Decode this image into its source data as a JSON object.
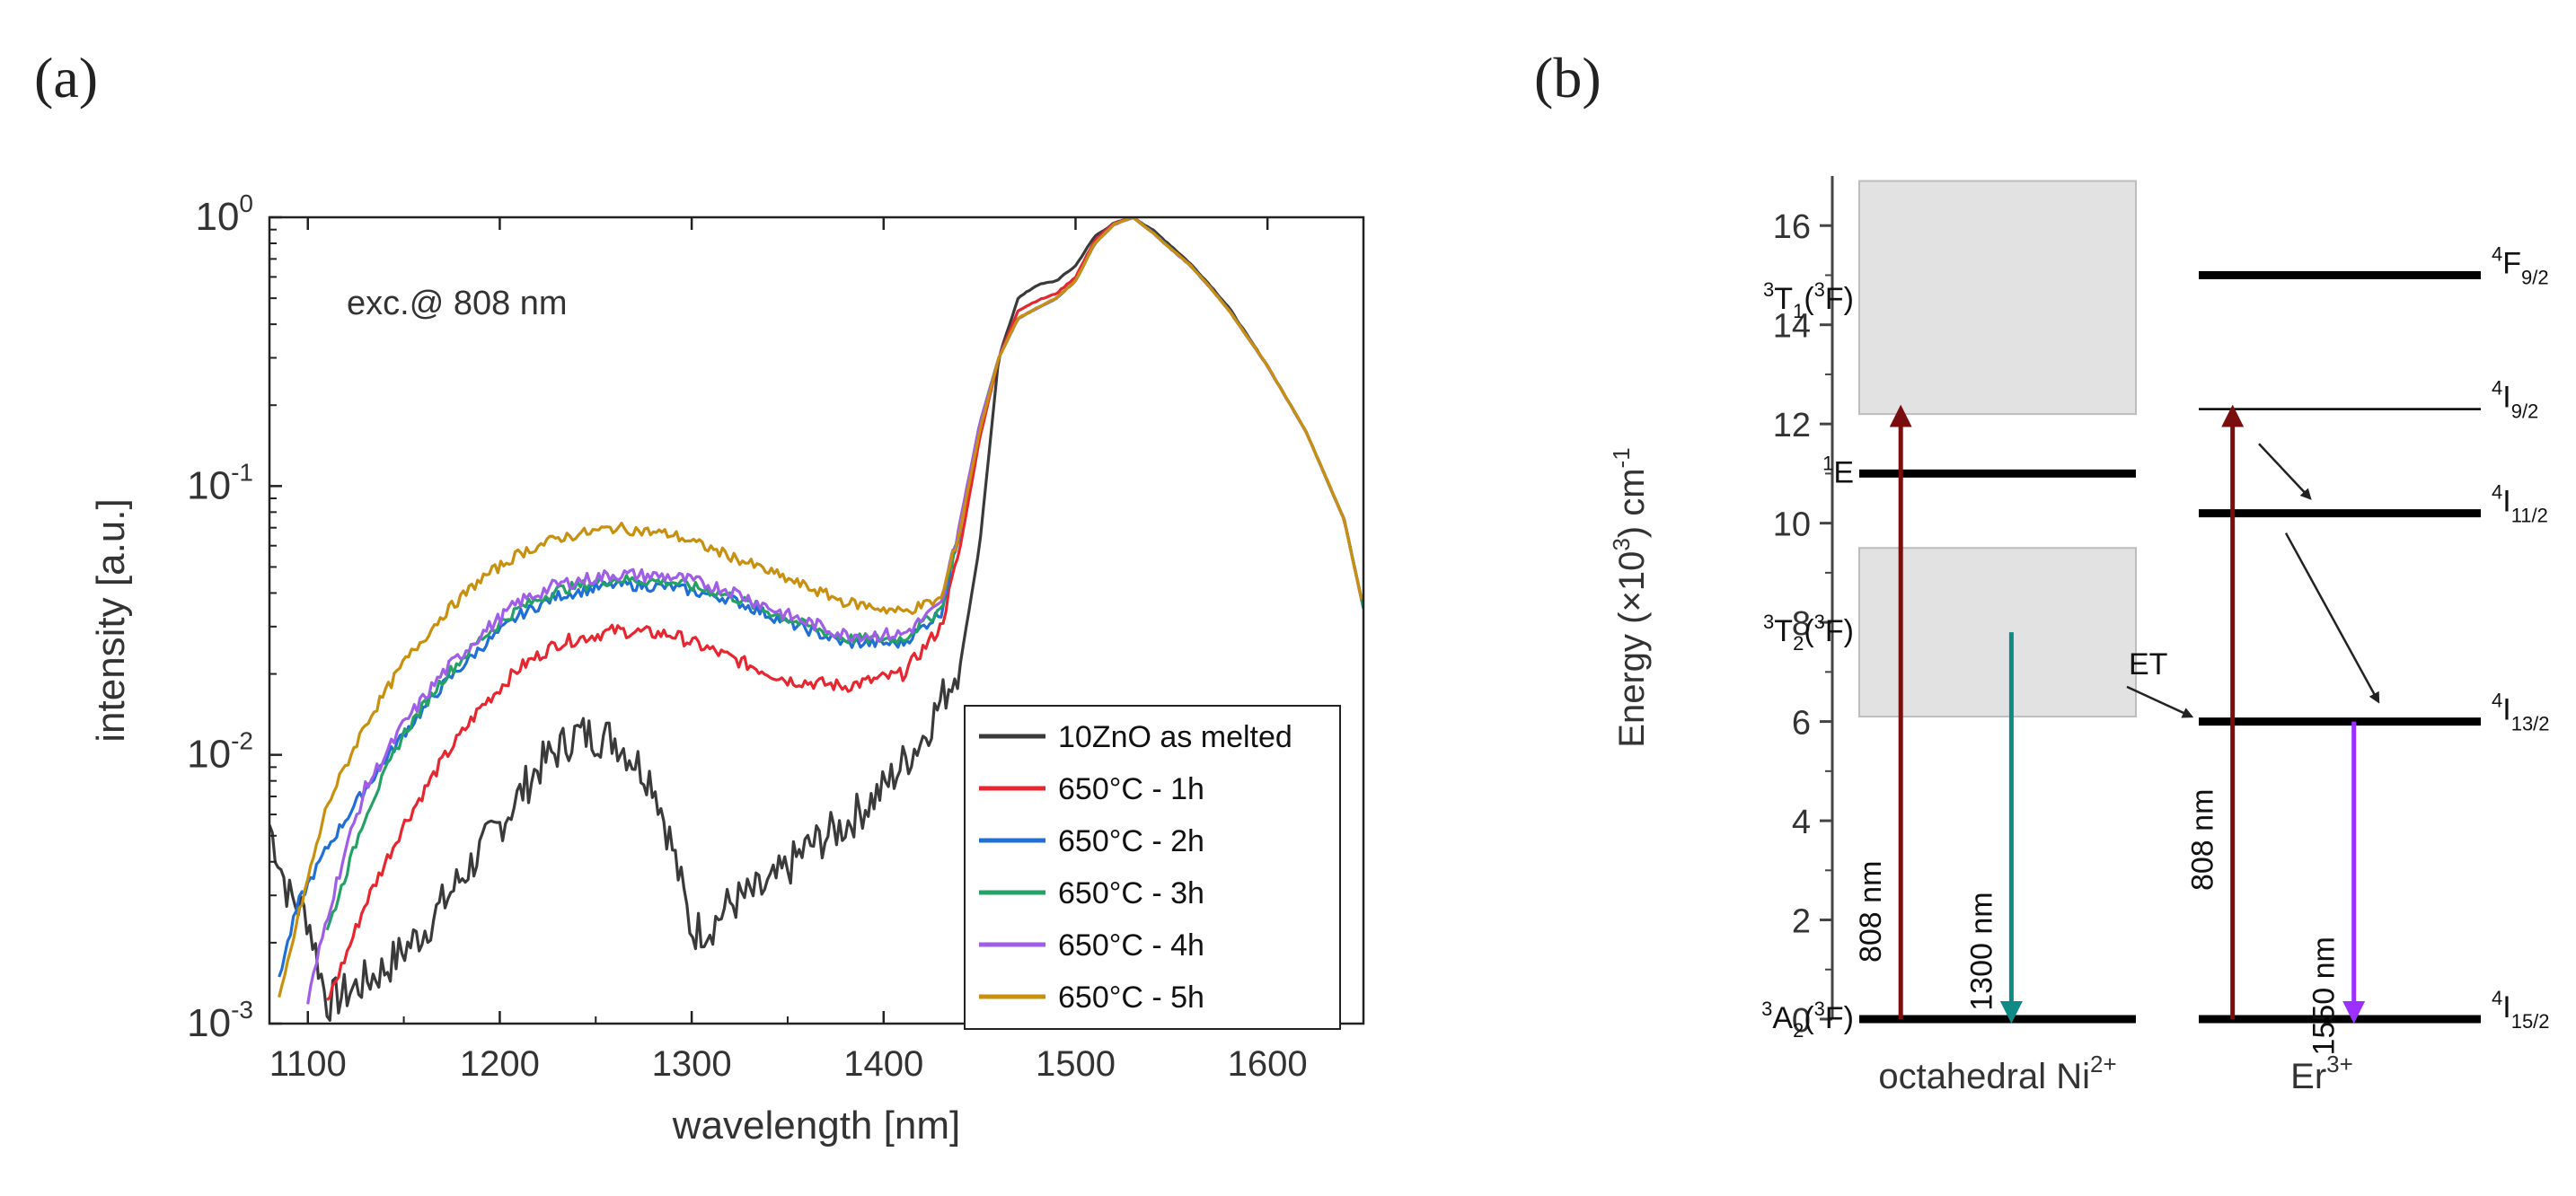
{
  "chart_data": [
    {
      "panel": "(a)",
      "type": "line",
      "annotation": "exc.@ 808 nm",
      "xlabel": "wavelength [nm]",
      "ylabel": "intensity [a.u.]",
      "xlim": [
        1080,
        1650
      ],
      "ylim": [
        0.001,
        1
      ],
      "yscale": "log",
      "xticks": [
        1100,
        1200,
        1300,
        1400,
        1500,
        1600
      ],
      "yticks": [
        {
          "base": "10",
          "exp": "-3",
          "value": 0.001
        },
        {
          "base": "10",
          "exp": "-2",
          "value": 0.01
        },
        {
          "base": "10",
          "exp": "-1",
          "value": 0.1
        },
        {
          "base": "10",
          "exp": "0",
          "value": 1
        }
      ],
      "legend_position": "bottom-right",
      "series": [
        {
          "name": "10ZnO as melted",
          "color": "#3a3a3a",
          "noise": 0.16,
          "x": [
            1080,
            1090,
            1100,
            1110,
            1120,
            1140,
            1160,
            1180,
            1200,
            1220,
            1240,
            1260,
            1280,
            1290,
            1300,
            1310,
            1320,
            1340,
            1360,
            1380,
            1400,
            1420,
            1440,
            1450,
            1460,
            1470,
            1480,
            1490,
            1500,
            1510,
            1520,
            1530,
            1540,
            1550,
            1560,
            1570,
            1580,
            1600,
            1620,
            1640,
            1650
          ],
          "values": [
            0.0055,
            0.003,
            0.0025,
            0.0012,
            0.0013,
            0.0016,
            0.0022,
            0.0035,
            0.0055,
            0.009,
            0.012,
            0.0115,
            0.008,
            0.0045,
            0.0022,
            0.0023,
            0.0028,
            0.0032,
            0.0045,
            0.0055,
            0.0075,
            0.0115,
            0.022,
            0.06,
            0.3,
            0.5,
            0.56,
            0.58,
            0.66,
            0.85,
            0.95,
            1.0,
            0.9,
            0.78,
            0.67,
            0.56,
            0.46,
            0.28,
            0.16,
            0.075,
            0.035
          ]
        },
        {
          "name": "650°C - 1h",
          "color": "#e8262f",
          "noise": 0.05,
          "x": [
            1110,
            1120,
            1130,
            1150,
            1170,
            1190,
            1210,
            1230,
            1260,
            1290,
            1320,
            1350,
            1380,
            1410,
            1430,
            1440,
            1450,
            1460,
            1470,
            1480,
            1490,
            1500,
            1510,
            1520,
            1530,
            1540,
            1550,
            1560,
            1570,
            1580,
            1600,
            1620,
            1640,
            1650
          ],
          "values": [
            0.0012,
            0.0018,
            0.0028,
            0.0055,
            0.0095,
            0.015,
            0.021,
            0.026,
            0.029,
            0.028,
            0.023,
            0.019,
            0.018,
            0.02,
            0.03,
            0.06,
            0.15,
            0.3,
            0.45,
            0.49,
            0.52,
            0.6,
            0.82,
            0.95,
            1.0,
            0.88,
            0.76,
            0.66,
            0.55,
            0.45,
            0.28,
            0.16,
            0.075,
            0.035
          ]
        },
        {
          "name": "650°C - 2h",
          "color": "#1f6fd6",
          "noise": 0.04,
          "x": [
            1085,
            1095,
            1110,
            1130,
            1150,
            1170,
            1190,
            1210,
            1230,
            1260,
            1290,
            1320,
            1350,
            1380,
            1410,
            1430,
            1440,
            1450,
            1460,
            1470,
            1480,
            1490,
            1500,
            1510,
            1520,
            1530,
            1540,
            1550,
            1560,
            1570,
            1580,
            1600,
            1620,
            1640,
            1650
          ],
          "values": [
            0.0015,
            0.0028,
            0.0045,
            0.0075,
            0.012,
            0.018,
            0.025,
            0.033,
            0.039,
            0.043,
            0.042,
            0.038,
            0.031,
            0.026,
            0.026,
            0.034,
            0.07,
            0.17,
            0.3,
            0.42,
            0.46,
            0.5,
            0.58,
            0.8,
            0.94,
            1.0,
            0.88,
            0.76,
            0.66,
            0.55,
            0.45,
            0.28,
            0.16,
            0.075,
            0.035
          ]
        },
        {
          "name": "650°C - 3h",
          "color": "#24a165",
          "noise": 0.04,
          "x": [
            1110,
            1130,
            1150,
            1170,
            1190,
            1210,
            1230,
            1260,
            1290,
            1320,
            1350,
            1380,
            1410,
            1430,
            1440,
            1450,
            1460,
            1470,
            1480,
            1490,
            1500,
            1510,
            1520,
            1530,
            1540,
            1550,
            1560,
            1570,
            1580,
            1600,
            1620,
            1640,
            1650
          ],
          "values": [
            0.0022,
            0.006,
            0.012,
            0.019,
            0.027,
            0.035,
            0.041,
            0.045,
            0.044,
            0.039,
            0.032,
            0.027,
            0.027,
            0.035,
            0.072,
            0.17,
            0.3,
            0.42,
            0.46,
            0.5,
            0.58,
            0.8,
            0.94,
            1.0,
            0.88,
            0.76,
            0.66,
            0.55,
            0.45,
            0.28,
            0.16,
            0.075,
            0.035
          ]
        },
        {
          "name": "650°C - 4h",
          "color": "#a05de8",
          "noise": 0.05,
          "x": [
            1100,
            1110,
            1120,
            1130,
            1150,
            1170,
            1190,
            1210,
            1230,
            1260,
            1290,
            1320,
            1350,
            1380,
            1410,
            1430,
            1440,
            1450,
            1460,
            1470,
            1480,
            1490,
            1500,
            1510,
            1520,
            1530,
            1540,
            1550,
            1560,
            1570,
            1580,
            1600,
            1620,
            1640,
            1650
          ],
          "values": [
            0.0012,
            0.0025,
            0.0045,
            0.0075,
            0.013,
            0.02,
            0.028,
            0.037,
            0.043,
            0.047,
            0.046,
            0.041,
            0.033,
            0.028,
            0.028,
            0.036,
            0.075,
            0.17,
            0.3,
            0.42,
            0.46,
            0.5,
            0.58,
            0.8,
            0.94,
            1.0,
            0.88,
            0.76,
            0.66,
            0.55,
            0.45,
            0.28,
            0.16,
            0.075,
            0.035
          ]
        },
        {
          "name": "650°C - 5h",
          "color": "#c8900e",
          "noise": 0.04,
          "x": [
            1085,
            1095,
            1110,
            1130,
            1150,
            1170,
            1190,
            1210,
            1230,
            1260,
            1290,
            1320,
            1350,
            1380,
            1410,
            1430,
            1440,
            1450,
            1460,
            1470,
            1480,
            1490,
            1500,
            1510,
            1520,
            1530,
            1540,
            1550,
            1560,
            1570,
            1580,
            1600,
            1620,
            1640,
            1650
          ],
          "values": [
            0.0012,
            0.0025,
            0.0065,
            0.013,
            0.022,
            0.033,
            0.045,
            0.056,
            0.064,
            0.07,
            0.066,
            0.055,
            0.045,
            0.037,
            0.034,
            0.038,
            0.07,
            0.16,
            0.3,
            0.42,
            0.46,
            0.5,
            0.58,
            0.8,
            0.94,
            1.0,
            0.88,
            0.76,
            0.66,
            0.55,
            0.45,
            0.28,
            0.16,
            0.075,
            0.035
          ]
        }
      ]
    },
    {
      "panel": "(b)",
      "type": "diagram",
      "ylabel": {
        "main": "Energy (×10",
        "sup": "3",
        "tail": ") cm",
        "sup2": "-1"
      },
      "ylim": [
        0,
        17
      ],
      "yticks": [
        0,
        2,
        4,
        6,
        8,
        10,
        12,
        14,
        16
      ],
      "column_labels": [
        {
          "text": "octahedral Ni",
          "sup": "2+"
        },
        {
          "text": "Er",
          "sup": "3+"
        }
      ],
      "bands": [
        {
          "name": "3T1-band",
          "y_low": 12.2,
          "y_high": 16.9
        },
        {
          "name": "3T2-band",
          "y_low": 6.1,
          "y_high": 9.5
        }
      ],
      "ni_levels": [
        {
          "name": "3A2",
          "energy": 0,
          "width": "thick",
          "pre": "3",
          "main": "A",
          "sub": "2",
          "tail": "(",
          "sup2": "3",
          "end": "F)"
        },
        {
          "name": "1E",
          "energy": 11.0,
          "width": "thick",
          "pre": "1",
          "main": "E",
          "sub": "",
          "tail": "",
          "sup2": "",
          "end": ""
        },
        {
          "name": "3T2",
          "energy": 7.8,
          "width": "none",
          "pre": "3",
          "main": "T",
          "sub": "2",
          "tail": "(",
          "sup2": "3",
          "end": "F)"
        },
        {
          "name": "3T1",
          "energy": 14.5,
          "width": "none",
          "pre": "3",
          "main": "T",
          "sub": "1",
          "tail": "(",
          "sup2": "3",
          "end": "F)"
        }
      ],
      "er_levels": [
        {
          "name": "4I15/2",
          "energy": 0,
          "width": "thick",
          "pre": "4",
          "main": "I",
          "sub": "15/2"
        },
        {
          "name": "4I13/2",
          "energy": 6.0,
          "width": "thick",
          "pre": "4",
          "main": "I",
          "sub": "13/2"
        },
        {
          "name": "4I11/2",
          "energy": 10.2,
          "width": "thick",
          "pre": "4",
          "main": "I",
          "sub": "11/2"
        },
        {
          "name": "4I9/2",
          "energy": 12.3,
          "width": "thin",
          "pre": "4",
          "main": "I",
          "sub": "9/2"
        },
        {
          "name": "4F9/2",
          "energy": 15.0,
          "width": "thick",
          "pre": "4",
          "main": "F",
          "sub": "9/2"
        }
      ],
      "transitions": [
        {
          "label": "808 nm",
          "column": "ni",
          "offset": 0.15,
          "from": 0,
          "to": 12.3,
          "color": "#7a0e0e"
        },
        {
          "label": "1300 nm",
          "column": "ni",
          "offset": 0.55,
          "from": 7.8,
          "to": 0,
          "color": "#0f8a84"
        },
        {
          "label": "808 nm",
          "column": "er",
          "offset": 0.12,
          "from": 0,
          "to": 12.3,
          "color": "#7a0e0e"
        },
        {
          "label": "1550 nm",
          "column": "er",
          "offset": 0.55,
          "from": 6.0,
          "to": 0,
          "color": "#9b30ff"
        }
      ],
      "et_label": "ET"
    }
  ]
}
